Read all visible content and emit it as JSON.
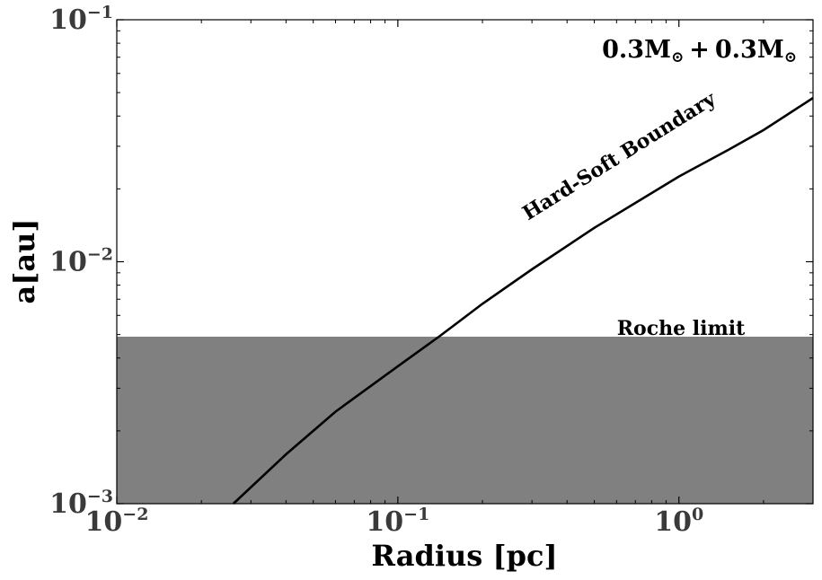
{
  "chart_data": {
    "type": "line",
    "title": "",
    "xlabel": "Radius [pc]",
    "ylabel": "a[au]",
    "xscale": "log",
    "yscale": "log",
    "xlim": [
      0.01,
      3.0
    ],
    "ylim": [
      0.001,
      0.1
    ],
    "grid": false,
    "x_ticks": [
      {
        "value": 0.01,
        "base": "10",
        "exp": "−2"
      },
      {
        "value": 0.1,
        "base": "10",
        "exp": "−1"
      },
      {
        "value": 1,
        "base": "10",
        "exp": "0"
      }
    ],
    "y_ticks": [
      {
        "value": 0.001,
        "base": "10",
        "exp": "−3"
      },
      {
        "value": 0.01,
        "base": "10",
        "exp": "−2"
      },
      {
        "value": 0.1,
        "base": "10",
        "exp": "−1"
      }
    ],
    "series": [
      {
        "color": "#000000",
        "x": [
          0.026,
          0.04,
          0.06,
          0.1,
          0.14,
          0.2,
          0.3,
          0.5,
          0.7,
          1.0,
          1.5,
          2.0,
          3.0
        ],
        "y": [
          0.001,
          0.0016,
          0.0024,
          0.0037,
          0.0049,
          0.0067,
          0.0093,
          0.0138,
          0.0175,
          0.0225,
          0.029,
          0.035,
          0.0475
        ]
      }
    ],
    "shaded_region": {
      "label": "Roche limit",
      "y_max": 0.0049,
      "color": "#808080"
    },
    "annotations": {
      "curve_label": "Hard-Soft Boundary",
      "mass_label_value": "0.3",
      "mass_label_unit": "M",
      "mass_label_sub": "⊙",
      "mass_label_plus": "+"
    }
  }
}
